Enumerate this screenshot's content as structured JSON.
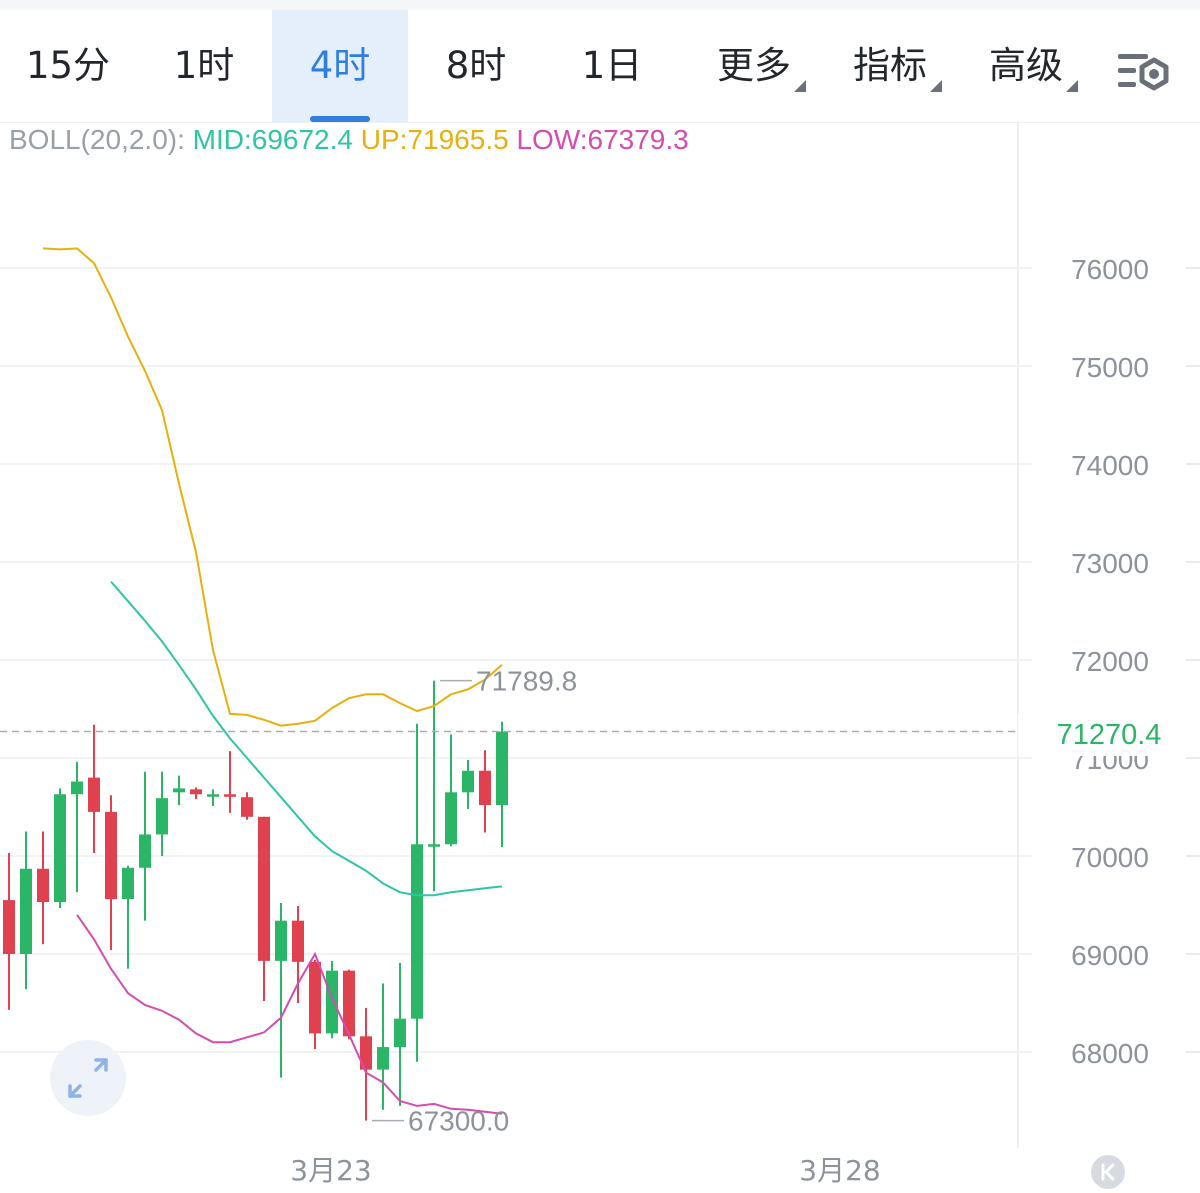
{
  "tabs": [
    {
      "label": "15分",
      "active": false,
      "dropdown": false
    },
    {
      "label": "1时",
      "active": false,
      "dropdown": false
    },
    {
      "label": "4时",
      "active": true,
      "dropdown": false
    },
    {
      "label": "8时",
      "active": false,
      "dropdown": false
    },
    {
      "label": "1日",
      "active": false,
      "dropdown": false
    },
    {
      "label": "更多",
      "active": false,
      "dropdown": true
    },
    {
      "label": "指标",
      "active": false,
      "dropdown": true
    },
    {
      "label": "高级",
      "active": false,
      "dropdown": true
    }
  ],
  "settings_icon": "chart-settings-icon",
  "boll": {
    "label": "BOLL(20,2.0):",
    "mid": "MID:69672.4",
    "up": "UP:71965.5",
    "low": "LOW:67379.3"
  },
  "current_price": "71270.4",
  "colors": {
    "up": "#2bb566",
    "down": "#e0414f",
    "mid": "#2ec5a5",
    "upper": "#e6b00f",
    "lower": "#d54cb0",
    "active_tab": "#2f7ee0"
  },
  "chart_data": {
    "type": "candlestick",
    "x_tick_labels": [
      "3月23",
      "3月28"
    ],
    "y_ticks": [
      68000,
      69000,
      70000,
      71000,
      72000,
      73000,
      74000,
      75000,
      76000
    ],
    "y_labels": [
      "68000",
      "69000",
      "70000",
      "71000",
      "72000",
      "73000",
      "74000",
      "75000",
      "76000"
    ],
    "ylim": [
      66400,
      77300
    ],
    "annotations": {
      "high": "71789.8",
      "low": "67300.0"
    },
    "candles": [
      {
        "o": 69550,
        "h": 70030,
        "l": 68430,
        "c": 69000
      },
      {
        "o": 69000,
        "h": 70250,
        "l": 68640,
        "c": 69870
      },
      {
        "o": 69870,
        "h": 70250,
        "l": 69100,
        "c": 69530
      },
      {
        "o": 69530,
        "h": 70690,
        "l": 69470,
        "c": 70630
      },
      {
        "o": 70630,
        "h": 70960,
        "l": 69630,
        "c": 70760
      },
      {
        "o": 70800,
        "h": 71340,
        "l": 70030,
        "c": 70450
      },
      {
        "o": 70450,
        "h": 70620,
        "l": 69040,
        "c": 69560
      },
      {
        "o": 69560,
        "h": 69900,
        "l": 68850,
        "c": 69880
      },
      {
        "o": 69880,
        "h": 70860,
        "l": 69340,
        "c": 70220
      },
      {
        "o": 70220,
        "h": 70860,
        "l": 70000,
        "c": 70590
      },
      {
        "o": 70650,
        "h": 70820,
        "l": 70520,
        "c": 70690
      },
      {
        "o": 70680,
        "h": 70700,
        "l": 70580,
        "c": 70630
      },
      {
        "o": 70630,
        "h": 70680,
        "l": 70510,
        "c": 70630
      },
      {
        "o": 70630,
        "h": 71070,
        "l": 70440,
        "c": 70620
      },
      {
        "o": 70600,
        "h": 70650,
        "l": 70370,
        "c": 70400
      },
      {
        "o": 70400,
        "h": 70400,
        "l": 68520,
        "c": 68930
      },
      {
        "o": 68930,
        "h": 69520,
        "l": 67740,
        "c": 69340
      },
      {
        "o": 69340,
        "h": 69490,
        "l": 68500,
        "c": 68920
      },
      {
        "o": 68920,
        "h": 68940,
        "l": 68030,
        "c": 68190
      },
      {
        "o": 68190,
        "h": 68930,
        "l": 68140,
        "c": 68830
      },
      {
        "o": 68830,
        "h": 68840,
        "l": 68130,
        "c": 68160
      },
      {
        "o": 68160,
        "h": 68450,
        "l": 67300,
        "c": 67820
      },
      {
        "o": 67820,
        "h": 68700,
        "l": 67410,
        "c": 68050
      },
      {
        "o": 68050,
        "h": 68910,
        "l": 67450,
        "c": 68340
      },
      {
        "o": 68340,
        "h": 71350,
        "l": 67900,
        "c": 70120
      },
      {
        "o": 70120,
        "h": 71790,
        "l": 69640,
        "c": 70120
      },
      {
        "o": 70120,
        "h": 71240,
        "l": 70100,
        "c": 70650
      },
      {
        "o": 70650,
        "h": 70980,
        "l": 70480,
        "c": 70870
      },
      {
        "o": 70870,
        "h": 71080,
        "l": 70240,
        "c": 70520
      },
      {
        "o": 70520,
        "h": 71370,
        "l": 70090,
        "c": 71270
      }
    ],
    "series": [
      {
        "values": [
          76200,
          76190,
          76200,
          76050,
          75700,
          75300,
          74950,
          74550,
          73800,
          73100,
          72100,
          71450,
          71440,
          71390,
          71330,
          71350,
          71380,
          71510,
          71610,
          71650,
          71650,
          71560,
          71480,
          71530,
          71650,
          71700,
          71800,
          71950
        ]
      },
      {
        "values": [
          72800,
          72600,
          72400,
          72190,
          71950,
          71700,
          71430,
          71200,
          71000,
          70800,
          70600,
          70400,
          70200,
          70050,
          69950,
          69850,
          69720,
          69630,
          69600,
          69600,
          69630,
          69650,
          69670,
          69690
        ]
      },
      {
        "values": [
          69400,
          69150,
          68850,
          68600,
          68480,
          68420,
          68330,
          68190,
          68100,
          68100,
          68150,
          68200,
          68350,
          68700,
          69000,
          68550,
          68180,
          67790,
          67690,
          67500,
          67450,
          67470,
          67420,
          67410,
          67390,
          67370
        ]
      }
    ]
  }
}
